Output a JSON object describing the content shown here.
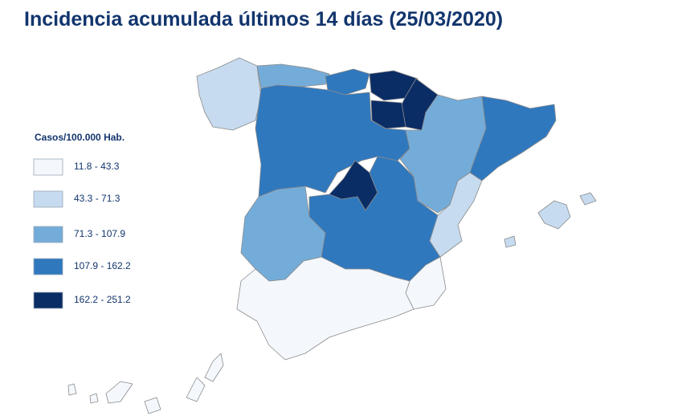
{
  "title": "Incidencia acumulada últimos 14 días (25/03/2020)",
  "legend": {
    "title": "Casos/100.000 Hab.",
    "items": [
      {
        "label": "11.8 - 43.3",
        "color": "#f4f8fd"
      },
      {
        "label": "43.3 - 71.3",
        "color": "#c6dbef"
      },
      {
        "label": "71.3 - 107.9",
        "color": "#74acd9"
      },
      {
        "label": "107.9 - 162.2",
        "color": "#2f78be"
      },
      {
        "label": "162.2 - 251.2",
        "color": "#0b2d66"
      }
    ]
  }
}
